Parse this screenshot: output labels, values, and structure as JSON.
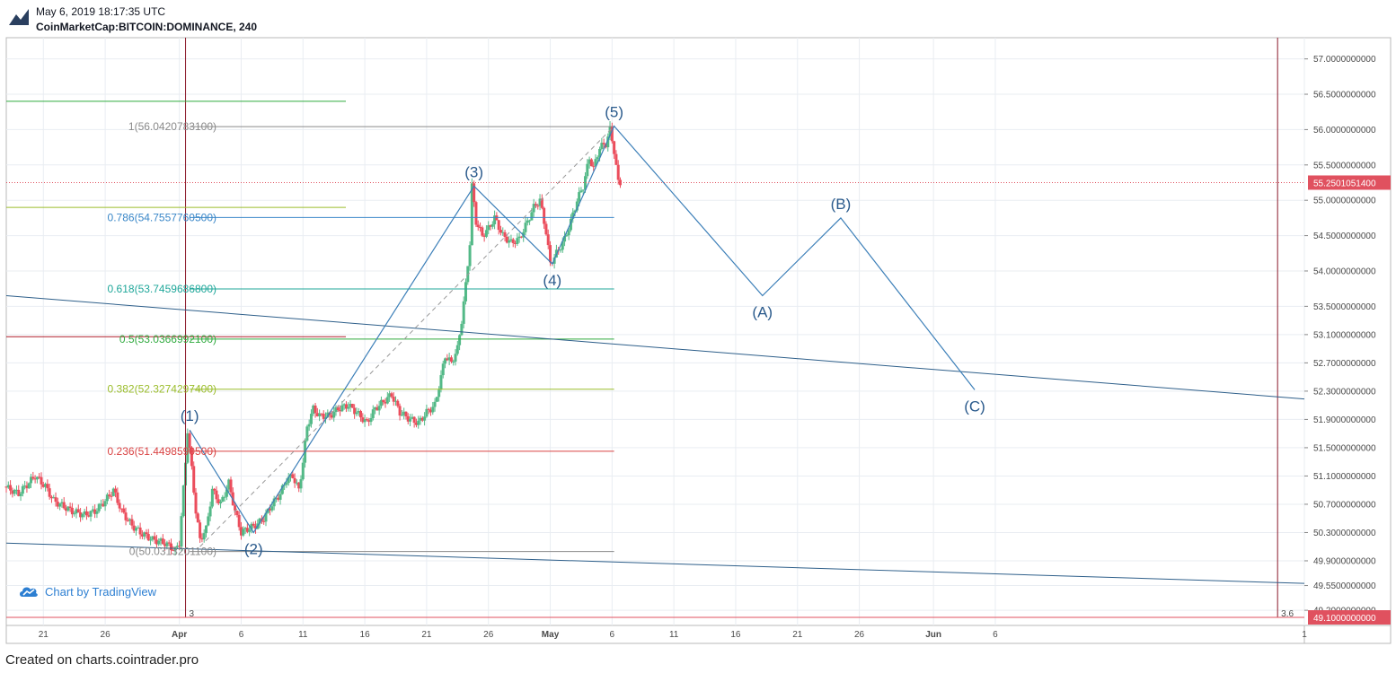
{
  "header": {
    "timestamp": "May 6, 2019 18:17:35 UTC",
    "symbol": "CoinMarketCap:BITCOIN:DOMINANCE, 240"
  },
  "footer": {
    "text": "Created on charts.cointrader.pro"
  },
  "attribution": {
    "text": "Chart by TradingView",
    "icon": "tradingview-cloud-icon"
  },
  "colors": {
    "up": "#53b987",
    "down": "#eb4d5c",
    "wave": "#3c7fb8",
    "trend": "#2e5f8a",
    "price_line": "#e0515f"
  },
  "chart_data": {
    "type": "candlestick",
    "title": "CoinMarketCap:BITCOIN:DOMINANCE, 240",
    "yaxis": {
      "position": "right",
      "ylim": [
        49.1,
        57.3
      ],
      "ticks": [
        {
          "v": 57.0,
          "label": "57.0000000000"
        },
        {
          "v": 56.5,
          "label": "56.5000000000"
        },
        {
          "v": 56.0,
          "label": "56.0000000000"
        },
        {
          "v": 55.5,
          "label": "55.5000000000"
        },
        {
          "v": 55.0,
          "label": "55.0000000000"
        },
        {
          "v": 54.5,
          "label": "54.5000000000"
        },
        {
          "v": 54.0,
          "label": "54.0000000000"
        },
        {
          "v": 53.5,
          "label": "53.5000000000"
        },
        {
          "v": 53.1,
          "label": "53.1000000000"
        },
        {
          "v": 52.7,
          "label": "52.7000000000"
        },
        {
          "v": 52.3,
          "label": "52.3000000000"
        },
        {
          "v": 51.9,
          "label": "51.9000000000"
        },
        {
          "v": 51.5,
          "label": "51.5000000000"
        },
        {
          "v": 51.1,
          "label": "51.1000000000"
        },
        {
          "v": 50.7,
          "label": "50.7000000000"
        },
        {
          "v": 50.3,
          "label": "50.3000000000"
        },
        {
          "v": 49.9,
          "label": "49.9000000000"
        },
        {
          "v": 49.55,
          "label": "49.5500000000"
        },
        {
          "v": 49.2,
          "label": "49.2000000000"
        }
      ],
      "current_price": {
        "v": 55.25,
        "label": "55.2501051400"
      },
      "floor_label": {
        "v": 49.1,
        "label": "49.1000000000"
      }
    },
    "xaxis": {
      "range": [
        "2019-03-18",
        "2019-07-01"
      ],
      "ticks": [
        {
          "date": "2019-03-21",
          "label": "21"
        },
        {
          "date": "2019-03-26",
          "label": "26"
        },
        {
          "date": "2019-04-01",
          "label": "Apr"
        },
        {
          "date": "2019-04-06",
          "label": "6"
        },
        {
          "date": "2019-04-11",
          "label": "11"
        },
        {
          "date": "2019-04-16",
          "label": "16"
        },
        {
          "date": "2019-04-21",
          "label": "21"
        },
        {
          "date": "2019-04-26",
          "label": "26"
        },
        {
          "date": "2019-05-01",
          "label": "May"
        },
        {
          "date": "2019-05-06",
          "label": "6"
        },
        {
          "date": "2019-05-11",
          "label": "11"
        },
        {
          "date": "2019-05-16",
          "label": "16"
        },
        {
          "date": "2019-05-21",
          "label": "21"
        },
        {
          "date": "2019-05-26",
          "label": "26"
        },
        {
          "date": "2019-06-01",
          "label": "Jun"
        },
        {
          "date": "2019-06-06",
          "label": "6"
        },
        {
          "date": "2019-07-01",
          "label": "1"
        }
      ]
    },
    "price_path": [
      [
        "2019-03-18 00:00",
        50.95
      ],
      [
        "2019-03-19 04:00",
        50.85
      ],
      [
        "2019-03-20 12:00",
        51.1
      ],
      [
        "2019-03-21 08:00",
        50.95
      ],
      [
        "2019-03-22 00:00",
        50.75
      ],
      [
        "2019-03-23 12:00",
        50.6
      ],
      [
        "2019-03-24 12:00",
        50.55
      ],
      [
        "2019-03-25 08:00",
        50.6
      ],
      [
        "2019-03-26 04:00",
        50.75
      ],
      [
        "2019-03-26 20:00",
        50.9
      ],
      [
        "2019-03-27 12:00",
        50.6
      ],
      [
        "2019-03-28 08:00",
        50.4
      ],
      [
        "2019-03-29 00:00",
        50.3
      ],
      [
        "2019-03-30 00:00",
        50.2
      ],
      [
        "2019-03-31 00:00",
        50.15
      ],
      [
        "2019-03-31 20:00",
        50.05
      ],
      [
        "2019-04-01 04:00",
        50.15
      ],
      [
        "2019-04-01 16:00",
        51.3
      ],
      [
        "2019-04-01 20:00",
        51.75
      ],
      [
        "2019-04-02 04:00",
        51.2
      ],
      [
        "2019-04-02 12:00",
        50.6
      ],
      [
        "2019-04-02 20:00",
        50.2
      ],
      [
        "2019-04-03 08:00",
        50.35
      ],
      [
        "2019-04-03 20:00",
        50.9
      ],
      [
        "2019-04-04 12:00",
        50.7
      ],
      [
        "2019-04-05 04:00",
        51.0
      ],
      [
        "2019-04-05 16:00",
        50.6
      ],
      [
        "2019-04-06 04:00",
        50.3
      ],
      [
        "2019-04-06 16:00",
        50.35
      ],
      [
        "2019-04-07 08:00",
        50.4
      ],
      [
        "2019-04-08 00:00",
        50.5
      ],
      [
        "2019-04-08 16:00",
        50.7
      ],
      [
        "2019-04-09 08:00",
        50.85
      ],
      [
        "2019-04-09 20:00",
        51.05
      ],
      [
        "2019-04-10 08:00",
        51.1
      ],
      [
        "2019-04-10 20:00",
        50.9
      ],
      [
        "2019-04-11 04:00",
        51.3
      ],
      [
        "2019-04-11 12:00",
        51.8
      ],
      [
        "2019-04-12 00:00",
        52.05
      ],
      [
        "2019-04-12 12:00",
        51.95
      ],
      [
        "2019-04-13 08:00",
        51.95
      ],
      [
        "2019-04-14 00:00",
        52.05
      ],
      [
        "2019-04-14 20:00",
        52.1
      ],
      [
        "2019-04-15 12:00",
        52.0
      ],
      [
        "2019-04-16 08:00",
        51.85
      ],
      [
        "2019-04-17 00:00",
        52.05
      ],
      [
        "2019-04-17 16:00",
        52.15
      ],
      [
        "2019-04-18 08:00",
        52.25
      ],
      [
        "2019-04-19 00:00",
        52.0
      ],
      [
        "2019-04-19 20:00",
        51.9
      ],
      [
        "2019-04-20 12:00",
        51.85
      ],
      [
        "2019-04-21 04:00",
        52.0
      ],
      [
        "2019-04-21 20:00",
        52.1
      ],
      [
        "2019-04-22 08:00",
        52.5
      ],
      [
        "2019-04-22 16:00",
        52.8
      ],
      [
        "2019-04-23 04:00",
        52.7
      ],
      [
        "2019-04-23 16:00",
        52.9
      ],
      [
        "2019-04-24 00:00",
        53.3
      ],
      [
        "2019-04-24 08:00",
        53.8
      ],
      [
        "2019-04-24 16:00",
        54.4
      ],
      [
        "2019-04-24 20:00",
        55.2
      ],
      [
        "2019-04-25 04:00",
        54.7
      ],
      [
        "2019-04-25 16:00",
        54.5
      ],
      [
        "2019-04-26 04:00",
        54.6
      ],
      [
        "2019-04-26 16:00",
        54.75
      ],
      [
        "2019-04-27 08:00",
        54.5
      ],
      [
        "2019-04-28 00:00",
        54.4
      ],
      [
        "2019-04-28 16:00",
        54.45
      ],
      [
        "2019-04-29 08:00",
        54.7
      ],
      [
        "2019-04-29 20:00",
        54.9
      ],
      [
        "2019-04-30 08:00",
        55.0
      ],
      [
        "2019-04-30 20:00",
        54.55
      ],
      [
        "2019-05-01 04:00",
        54.1
      ],
      [
        "2019-05-01 16:00",
        54.25
      ],
      [
        "2019-05-02 08:00",
        54.45
      ],
      [
        "2019-05-02 20:00",
        54.7
      ],
      [
        "2019-05-03 08:00",
        55.0
      ],
      [
        "2019-05-03 20:00",
        55.2
      ],
      [
        "2019-05-04 08:00",
        55.6
      ],
      [
        "2019-05-04 16:00",
        55.45
      ],
      [
        "2019-05-05 04:00",
        55.75
      ],
      [
        "2019-05-05 16:00",
        55.8
      ],
      [
        "2019-05-06 00:00",
        56.0
      ],
      [
        "2019-05-06 08:00",
        55.7
      ],
      [
        "2019-05-06 16:00",
        55.25
      ]
    ],
    "last_candle": "2019-05-06 16:00",
    "fibonacci": [
      {
        "level": 1,
        "label": "1(56.0420783100)",
        "v": 56.04207831,
        "color": "#8a8a8a"
      },
      {
        "level": 0.786,
        "label": "0.786(54.7557760500)",
        "v": 54.75577605,
        "color": "#3a87c8"
      },
      {
        "level": 0.618,
        "label": "0.618(53.7459686800)",
        "v": 53.74596868,
        "color": "#1fa79a"
      },
      {
        "level": 0.5,
        "label": "0.5(53.0366992100)",
        "v": 53.03669921,
        "color": "#2faa3e"
      },
      {
        "level": 0.382,
        "label": "0.382(52.3274297400)",
        "v": 52.32742974,
        "color": "#9bbd2b"
      },
      {
        "level": 0.236,
        "label": "0.236(51.4498590500)",
        "v": 51.44985905,
        "color": "#d94343"
      },
      {
        "level": 0,
        "label": "0(50.0313201100)",
        "v": 50.03132011,
        "color": "#8a8a8a"
      }
    ],
    "extra_levels": [
      {
        "v": 56.4,
        "color": "#2faa3e"
      },
      {
        "v": 54.9,
        "color": "#9bbd2b"
      },
      {
        "v": 53.07,
        "color": "#b11e2a"
      }
    ],
    "wave_path": [
      {
        "t": "2019-04-01 20:00",
        "v": 51.75
      },
      {
        "t": "2019-04-07 00:00",
        "v": 50.3
      },
      {
        "t": "2019-04-24 20:00",
        "v": 55.2
      },
      {
        "t": "2019-05-01 04:00",
        "v": 54.1
      },
      {
        "t": "2019-05-06 04:00",
        "v": 56.05
      },
      {
        "t": "2019-05-18 04:00",
        "v": 53.65
      },
      {
        "t": "2019-05-24 12:00",
        "v": 54.75
      },
      {
        "t": "2019-06-04 08:00",
        "v": 52.32
      }
    ],
    "wave_labels": [
      {
        "text": "(1)",
        "t": "2019-04-01 20:00",
        "v": 51.75,
        "pos": "above"
      },
      {
        "text": "(2)",
        "t": "2019-04-07 00:00",
        "v": 50.3,
        "pos": "below"
      },
      {
        "text": "(3)",
        "t": "2019-04-24 20:00",
        "v": 55.2,
        "pos": "above"
      },
      {
        "text": "(4)",
        "t": "2019-05-01 04:00",
        "v": 54.1,
        "pos": "below"
      },
      {
        "text": "(5)",
        "t": "2019-05-06 04:00",
        "v": 56.05,
        "pos": "above"
      },
      {
        "text": "(A)",
        "t": "2019-05-18 04:00",
        "v": 53.65,
        "pos": "below"
      },
      {
        "text": "(B)",
        "t": "2019-05-24 12:00",
        "v": 54.75,
        "pos": "above"
      },
      {
        "text": "(C)",
        "t": "2019-06-04 08:00",
        "v": 52.32,
        "pos": "below"
      }
    ],
    "trendlines": [
      {
        "t1": "2019-03-18 00:00",
        "v1": 53.65,
        "t2": "2019-07-01 00:00",
        "v2": 52.19
      },
      {
        "t1": "2019-03-18 00:00",
        "v1": 50.15,
        "t2": "2019-07-01 00:00",
        "v2": 49.58
      }
    ],
    "dashed_line": {
      "t1": "2019-04-02 16:00",
      "v1": 50.1,
      "t2": "2019-05-06 04:00",
      "v2": 56.05
    },
    "vertical_markers": [
      {
        "t": "2019-04-01 12:00",
        "label": "3"
      },
      {
        "t": "2019-06-28 20:00",
        "label": "3.6"
      }
    ],
    "grid": true
  }
}
